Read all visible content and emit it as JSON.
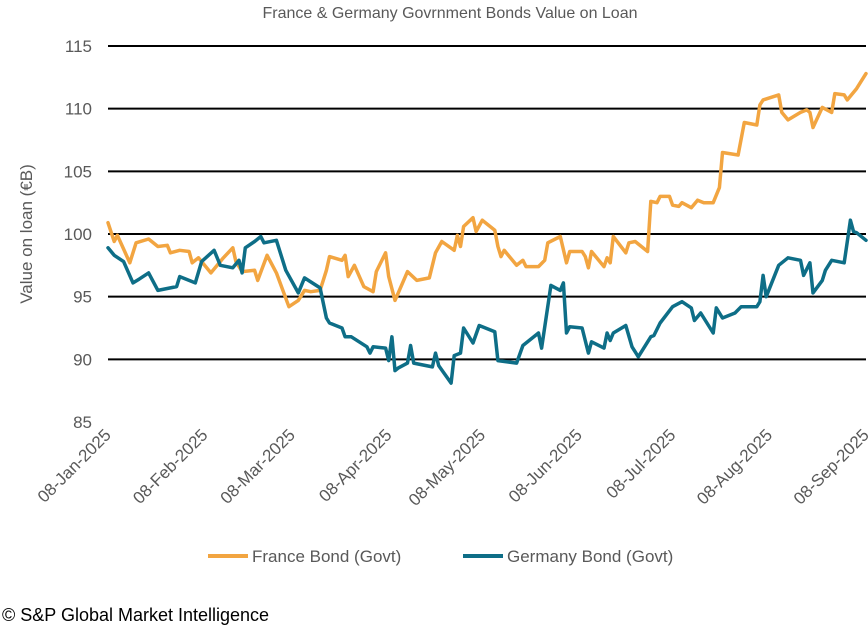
{
  "chart_data": {
    "type": "line",
    "title": "France & Germany Govrnment Bonds Value on Loan",
    "xlabel": "",
    "ylabel": "Value on loan (€B)",
    "ylim": [
      85,
      115
    ],
    "yticks": [
      85,
      90,
      95,
      100,
      105,
      110,
      115
    ],
    "gridlines": [
      90,
      95,
      100,
      105,
      110,
      115
    ],
    "xlim": [
      "2025-01-08",
      "2025-09-08"
    ],
    "xticks": [
      {
        "date": "2025-01-08",
        "label": "08-Jan-2025"
      },
      {
        "date": "2025-02-08",
        "label": "08-Feb-2025"
      },
      {
        "date": "2025-03-08",
        "label": "08-Mar-2025"
      },
      {
        "date": "2025-04-08",
        "label": "08-Apr-2025"
      },
      {
        "date": "2025-05-08",
        "label": "08-May-2025"
      },
      {
        "date": "2025-06-08",
        "label": "08-Jun-2025"
      },
      {
        "date": "2025-07-08",
        "label": "08-Jul-2025"
      },
      {
        "date": "2025-08-08",
        "label": "08-Aug-2025"
      },
      {
        "date": "2025-09-08",
        "label": "08-Sep-2025"
      }
    ],
    "grid": true,
    "legend_position": "bottom",
    "series": [
      {
        "name": "France Bond (Govt)",
        "color": "#F2A541",
        "points": [
          [
            "2025-01-08",
            100.9
          ],
          [
            "2025-01-10",
            99.4
          ],
          [
            "2025-01-11",
            99.9
          ],
          [
            "2025-01-15",
            97.7
          ],
          [
            "2025-01-17",
            99.3
          ],
          [
            "2025-01-21",
            99.6
          ],
          [
            "2025-01-24",
            99.0
          ],
          [
            "2025-01-27",
            99.1
          ],
          [
            "2025-01-28",
            98.5
          ],
          [
            "2025-01-31",
            98.7
          ],
          [
            "2025-02-03",
            98.6
          ],
          [
            "2025-02-04",
            97.7
          ],
          [
            "2025-02-06",
            98.1
          ],
          [
            "2025-02-10",
            96.9
          ],
          [
            "2025-02-14",
            98.1
          ],
          [
            "2025-02-17",
            98.9
          ],
          [
            "2025-02-18",
            97.8
          ],
          [
            "2025-02-20",
            97.0
          ],
          [
            "2025-02-24",
            97.1
          ],
          [
            "2025-02-25",
            96.3
          ],
          [
            "2025-02-28",
            98.3
          ],
          [
            "2025-03-03",
            96.9
          ],
          [
            "2025-03-07",
            94.2
          ],
          [
            "2025-03-10",
            94.7
          ],
          [
            "2025-03-12",
            95.5
          ],
          [
            "2025-03-14",
            95.4
          ],
          [
            "2025-03-17",
            95.5
          ],
          [
            "2025-03-19",
            97.1
          ],
          [
            "2025-03-20",
            98.2
          ],
          [
            "2025-03-24",
            97.9
          ],
          [
            "2025-03-25",
            98.3
          ],
          [
            "2025-03-26",
            96.6
          ],
          [
            "2025-03-28",
            97.5
          ],
          [
            "2025-03-31",
            95.8
          ],
          [
            "2025-04-03",
            95.4
          ],
          [
            "2025-04-04",
            97.0
          ],
          [
            "2025-04-07",
            98.5
          ],
          [
            "2025-04-08",
            96.6
          ],
          [
            "2025-04-10",
            94.7
          ],
          [
            "2025-04-14",
            97.0
          ],
          [
            "2025-04-17",
            96.3
          ],
          [
            "2025-04-21",
            96.5
          ],
          [
            "2025-04-23",
            98.5
          ],
          [
            "2025-04-25",
            99.4
          ],
          [
            "2025-04-29",
            98.7
          ],
          [
            "2025-04-30",
            99.9
          ],
          [
            "2025-05-01",
            99.0
          ],
          [
            "2025-05-02",
            100.6
          ],
          [
            "2025-05-05",
            101.3
          ],
          [
            "2025-05-06",
            100.2
          ],
          [
            "2025-05-08",
            101.1
          ],
          [
            "2025-05-12",
            100.3
          ],
          [
            "2025-05-13",
            99.0
          ],
          [
            "2025-05-14",
            98.2
          ],
          [
            "2025-05-15",
            98.7
          ],
          [
            "2025-05-19",
            97.5
          ],
          [
            "2025-05-21",
            97.9
          ],
          [
            "2025-05-22",
            97.4
          ],
          [
            "2025-05-26",
            97.4
          ],
          [
            "2025-05-28",
            97.9
          ],
          [
            "2025-05-29",
            99.3
          ],
          [
            "2025-06-02",
            99.8
          ],
          [
            "2025-06-04",
            97.7
          ],
          [
            "2025-06-05",
            98.6
          ],
          [
            "2025-06-09",
            98.6
          ],
          [
            "2025-06-10",
            98.2
          ],
          [
            "2025-06-11",
            97.3
          ],
          [
            "2025-06-12",
            98.6
          ],
          [
            "2025-06-16",
            97.4
          ],
          [
            "2025-06-17",
            98.1
          ],
          [
            "2025-06-18",
            97.7
          ],
          [
            "2025-06-19",
            99.8
          ],
          [
            "2025-06-23",
            98.5
          ],
          [
            "2025-06-24",
            99.3
          ],
          [
            "2025-06-26",
            99.4
          ],
          [
            "2025-06-30",
            98.6
          ],
          [
            "2025-07-01",
            102.6
          ],
          [
            "2025-07-03",
            102.5
          ],
          [
            "2025-07-04",
            103.0
          ],
          [
            "2025-07-07",
            103.0
          ],
          [
            "2025-07-08",
            102.3
          ],
          [
            "2025-07-10",
            102.2
          ],
          [
            "2025-07-11",
            102.5
          ],
          [
            "2025-07-14",
            102.1
          ],
          [
            "2025-07-16",
            102.7
          ],
          [
            "2025-07-18",
            102.5
          ],
          [
            "2025-07-21",
            102.5
          ],
          [
            "2025-07-23",
            103.7
          ],
          [
            "2025-07-24",
            106.5
          ],
          [
            "2025-07-29",
            106.3
          ],
          [
            "2025-07-31",
            108.9
          ],
          [
            "2025-08-04",
            108.7
          ],
          [
            "2025-08-05",
            110.3
          ],
          [
            "2025-08-06",
            110.7
          ],
          [
            "2025-08-11",
            111.1
          ],
          [
            "2025-08-12",
            109.7
          ],
          [
            "2025-08-14",
            109.1
          ],
          [
            "2025-08-18",
            109.7
          ],
          [
            "2025-08-20",
            109.9
          ],
          [
            "2025-08-21",
            109.7
          ],
          [
            "2025-08-22",
            108.5
          ],
          [
            "2025-08-25",
            110.1
          ],
          [
            "2025-08-28",
            109.7
          ],
          [
            "2025-08-29",
            111.2
          ],
          [
            "2025-09-01",
            111.1
          ],
          [
            "2025-09-02",
            110.7
          ],
          [
            "2025-09-05",
            111.6
          ],
          [
            "2025-09-08",
            112.8
          ]
        ]
      },
      {
        "name": "Germany Bond (Govt)",
        "color": "#0E6E87",
        "points": [
          [
            "2025-01-08",
            98.9
          ],
          [
            "2025-01-10",
            98.3
          ],
          [
            "2025-01-13",
            97.8
          ],
          [
            "2025-01-16",
            96.1
          ],
          [
            "2025-01-18",
            96.4
          ],
          [
            "2025-01-21",
            96.9
          ],
          [
            "2025-01-24",
            95.5
          ],
          [
            "2025-01-30",
            95.8
          ],
          [
            "2025-01-31",
            96.6
          ],
          [
            "2025-02-04",
            96.2
          ],
          [
            "2025-02-05",
            96.1
          ],
          [
            "2025-02-07",
            97.8
          ],
          [
            "2025-02-11",
            98.7
          ],
          [
            "2025-02-13",
            97.5
          ],
          [
            "2025-02-17",
            97.3
          ],
          [
            "2025-02-19",
            97.9
          ],
          [
            "2025-02-20",
            96.9
          ],
          [
            "2025-02-21",
            98.9
          ],
          [
            "2025-02-24",
            99.4
          ],
          [
            "2025-02-26",
            99.8
          ],
          [
            "2025-02-27",
            99.3
          ],
          [
            "2025-03-03",
            99.5
          ],
          [
            "2025-03-06",
            97.1
          ],
          [
            "2025-03-10",
            95.3
          ],
          [
            "2025-03-12",
            96.5
          ],
          [
            "2025-03-17",
            95.7
          ],
          [
            "2025-03-19",
            93.3
          ],
          [
            "2025-03-20",
            92.9
          ],
          [
            "2025-03-24",
            92.5
          ],
          [
            "2025-03-25",
            91.8
          ],
          [
            "2025-03-27",
            91.8
          ],
          [
            "2025-04-01",
            91.0
          ],
          [
            "2025-04-02",
            90.5
          ],
          [
            "2025-04-03",
            91.0
          ],
          [
            "2025-04-07",
            90.9
          ],
          [
            "2025-04-08",
            89.9
          ],
          [
            "2025-04-09",
            91.8
          ],
          [
            "2025-04-10",
            89.1
          ],
          [
            "2025-04-11",
            89.3
          ],
          [
            "2025-04-14",
            89.7
          ],
          [
            "2025-04-15",
            91.1
          ],
          [
            "2025-04-16",
            89.7
          ],
          [
            "2025-04-22",
            89.4
          ],
          [
            "2025-04-23",
            90.5
          ],
          [
            "2025-04-24",
            89.5
          ],
          [
            "2025-04-28",
            88.1
          ],
          [
            "2025-04-29",
            90.3
          ],
          [
            "2025-05-01",
            90.5
          ],
          [
            "2025-05-02",
            92.5
          ],
          [
            "2025-05-05",
            91.3
          ],
          [
            "2025-05-07",
            92.7
          ],
          [
            "2025-05-12",
            92.2
          ],
          [
            "2025-05-13",
            89.9
          ],
          [
            "2025-05-19",
            89.7
          ],
          [
            "2025-05-21",
            91.1
          ],
          [
            "2025-05-26",
            92.1
          ],
          [
            "2025-05-27",
            90.9
          ],
          [
            "2025-05-30",
            95.9
          ],
          [
            "2025-06-02",
            95.5
          ],
          [
            "2025-06-03",
            96.1
          ],
          [
            "2025-06-04",
            92.1
          ],
          [
            "2025-06-05",
            92.6
          ],
          [
            "2025-06-09",
            92.5
          ],
          [
            "2025-06-11",
            90.5
          ],
          [
            "2025-06-12",
            91.4
          ],
          [
            "2025-06-16",
            90.9
          ],
          [
            "2025-06-17",
            92.1
          ],
          [
            "2025-06-18",
            91.5
          ],
          [
            "2025-06-19",
            92.1
          ],
          [
            "2025-06-23",
            92.7
          ],
          [
            "2025-06-25",
            91.0
          ],
          [
            "2025-06-27",
            90.2
          ],
          [
            "2025-07-01",
            91.8
          ],
          [
            "2025-07-02",
            91.9
          ],
          [
            "2025-07-04",
            92.9
          ],
          [
            "2025-07-08",
            94.2
          ],
          [
            "2025-07-11",
            94.6
          ],
          [
            "2025-07-14",
            94.1
          ],
          [
            "2025-07-15",
            93.1
          ],
          [
            "2025-07-17",
            93.7
          ],
          [
            "2025-07-21",
            92.1
          ],
          [
            "2025-07-22",
            94.1
          ],
          [
            "2025-07-24",
            93.3
          ],
          [
            "2025-07-28",
            93.7
          ],
          [
            "2025-07-30",
            94.2
          ],
          [
            "2025-08-04",
            94.2
          ],
          [
            "2025-08-05",
            94.6
          ],
          [
            "2025-08-06",
            96.7
          ],
          [
            "2025-08-07",
            95.0
          ],
          [
            "2025-08-11",
            97.5
          ],
          [
            "2025-08-14",
            98.1
          ],
          [
            "2025-08-18",
            97.9
          ],
          [
            "2025-08-19",
            96.7
          ],
          [
            "2025-08-21",
            97.7
          ],
          [
            "2025-08-22",
            95.3
          ],
          [
            "2025-08-25",
            96.3
          ],
          [
            "2025-08-26",
            97.1
          ],
          [
            "2025-08-28",
            97.9
          ],
          [
            "2025-09-01",
            97.7
          ],
          [
            "2025-09-03",
            101.1
          ],
          [
            "2025-09-04",
            100.2
          ],
          [
            "2025-09-05",
            100.1
          ],
          [
            "2025-09-08",
            99.5
          ]
        ]
      }
    ]
  },
  "footer": "© S&P Global Market Intelligence"
}
